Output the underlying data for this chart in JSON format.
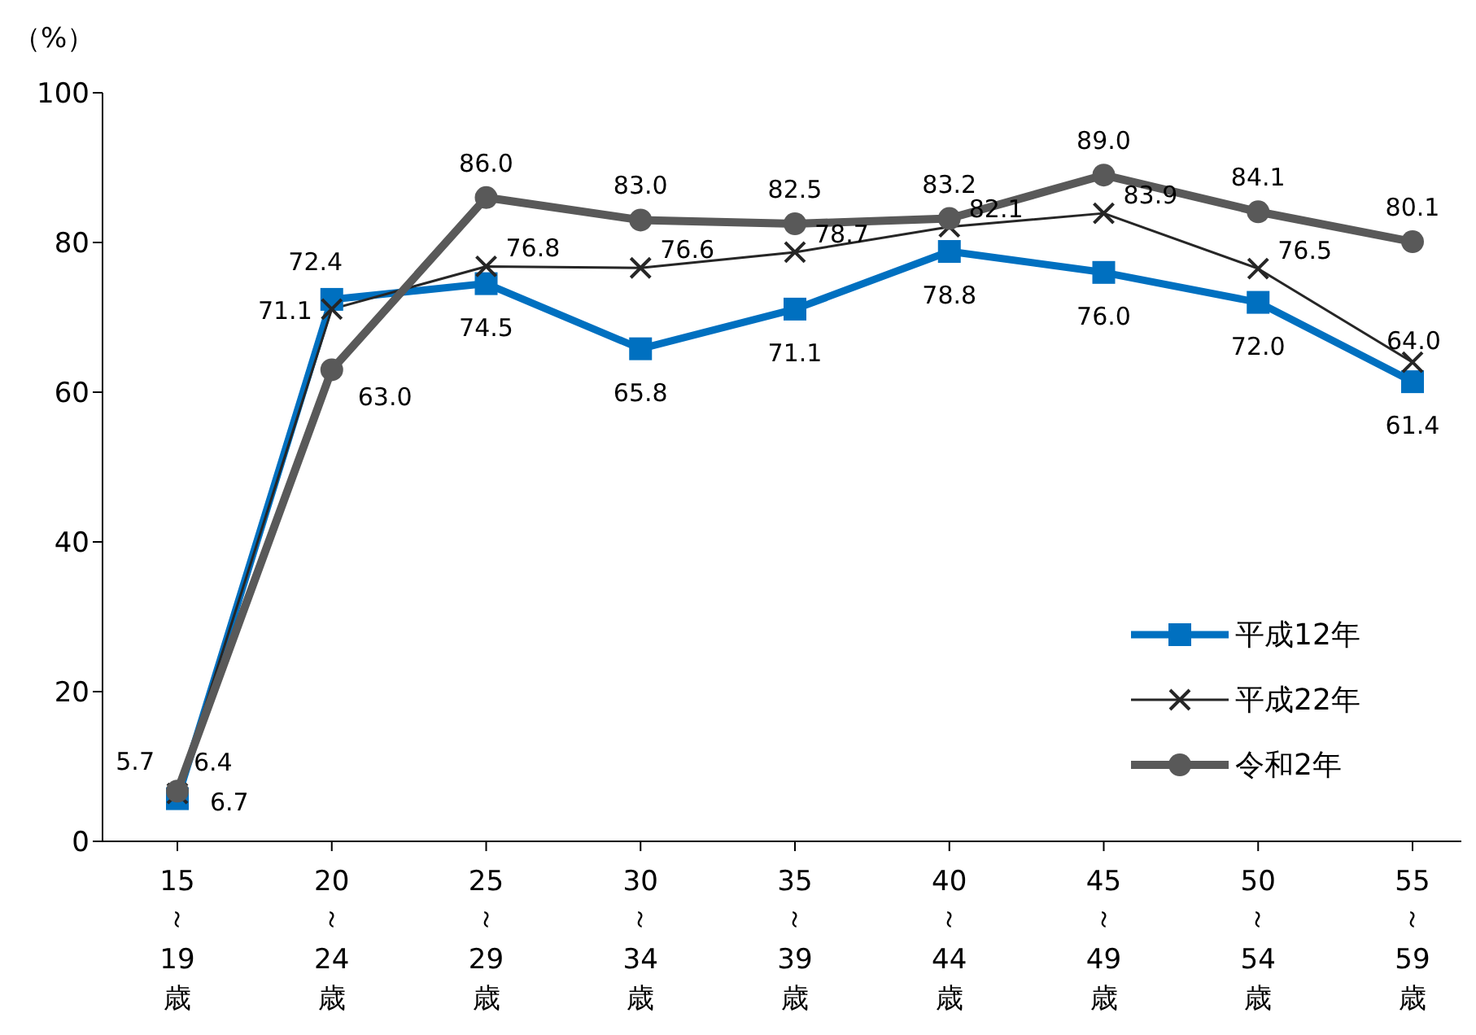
{
  "chart_data": {
    "type": "line",
    "ylabel": "（%）",
    "categories": [
      "15\n～\n19\n歳",
      "20\n～\n24\n歳",
      "25\n～\n29\n歳",
      "30\n～\n34\n歳",
      "35\n～\n39\n歳",
      "40\n～\n44\n歳",
      "45\n～\n49\n歳",
      "50\n～\n54\n歳",
      "55\n～\n59\n歳"
    ],
    "series": [
      {
        "name": "平成12年",
        "color": "#0070c0",
        "marker": "square",
        "values": [
          5.7,
          72.4,
          74.5,
          65.8,
          71.1,
          78.8,
          76.0,
          72.0,
          61.4
        ],
        "value_labels": [
          "5.7",
          "72.4",
          "74.5",
          "65.8",
          "71.1",
          "78.8",
          "76.0",
          "72.0",
          "61.4"
        ]
      },
      {
        "name": "平成22年",
        "color": "#262626",
        "marker": "cross",
        "values": [
          6.4,
          71.1,
          76.8,
          76.6,
          78.7,
          82.1,
          83.9,
          76.5,
          64.0
        ],
        "value_labels": [
          "6.4",
          "71.1",
          "76.8",
          "76.6",
          "78.7",
          "82.1",
          "83.9",
          "76.5",
          "64.0"
        ]
      },
      {
        "name": "令和2年",
        "color": "#595959",
        "marker": "circle",
        "values": [
          6.7,
          63.0,
          86.0,
          83.0,
          82.5,
          83.2,
          89.0,
          84.1,
          80.1
        ],
        "value_labels": [
          "6.7",
          "63.0",
          "86.0",
          "83.0",
          "82.5",
          "83.2",
          "89.0",
          "84.1",
          "80.1"
        ]
      }
    ],
    "ylim": [
      0,
      100
    ],
    "yticks": [
      0,
      20,
      40,
      60,
      80,
      100
    ],
    "legend": "right",
    "line_style": "solid",
    "grid": false,
    "data_labels": true
  }
}
